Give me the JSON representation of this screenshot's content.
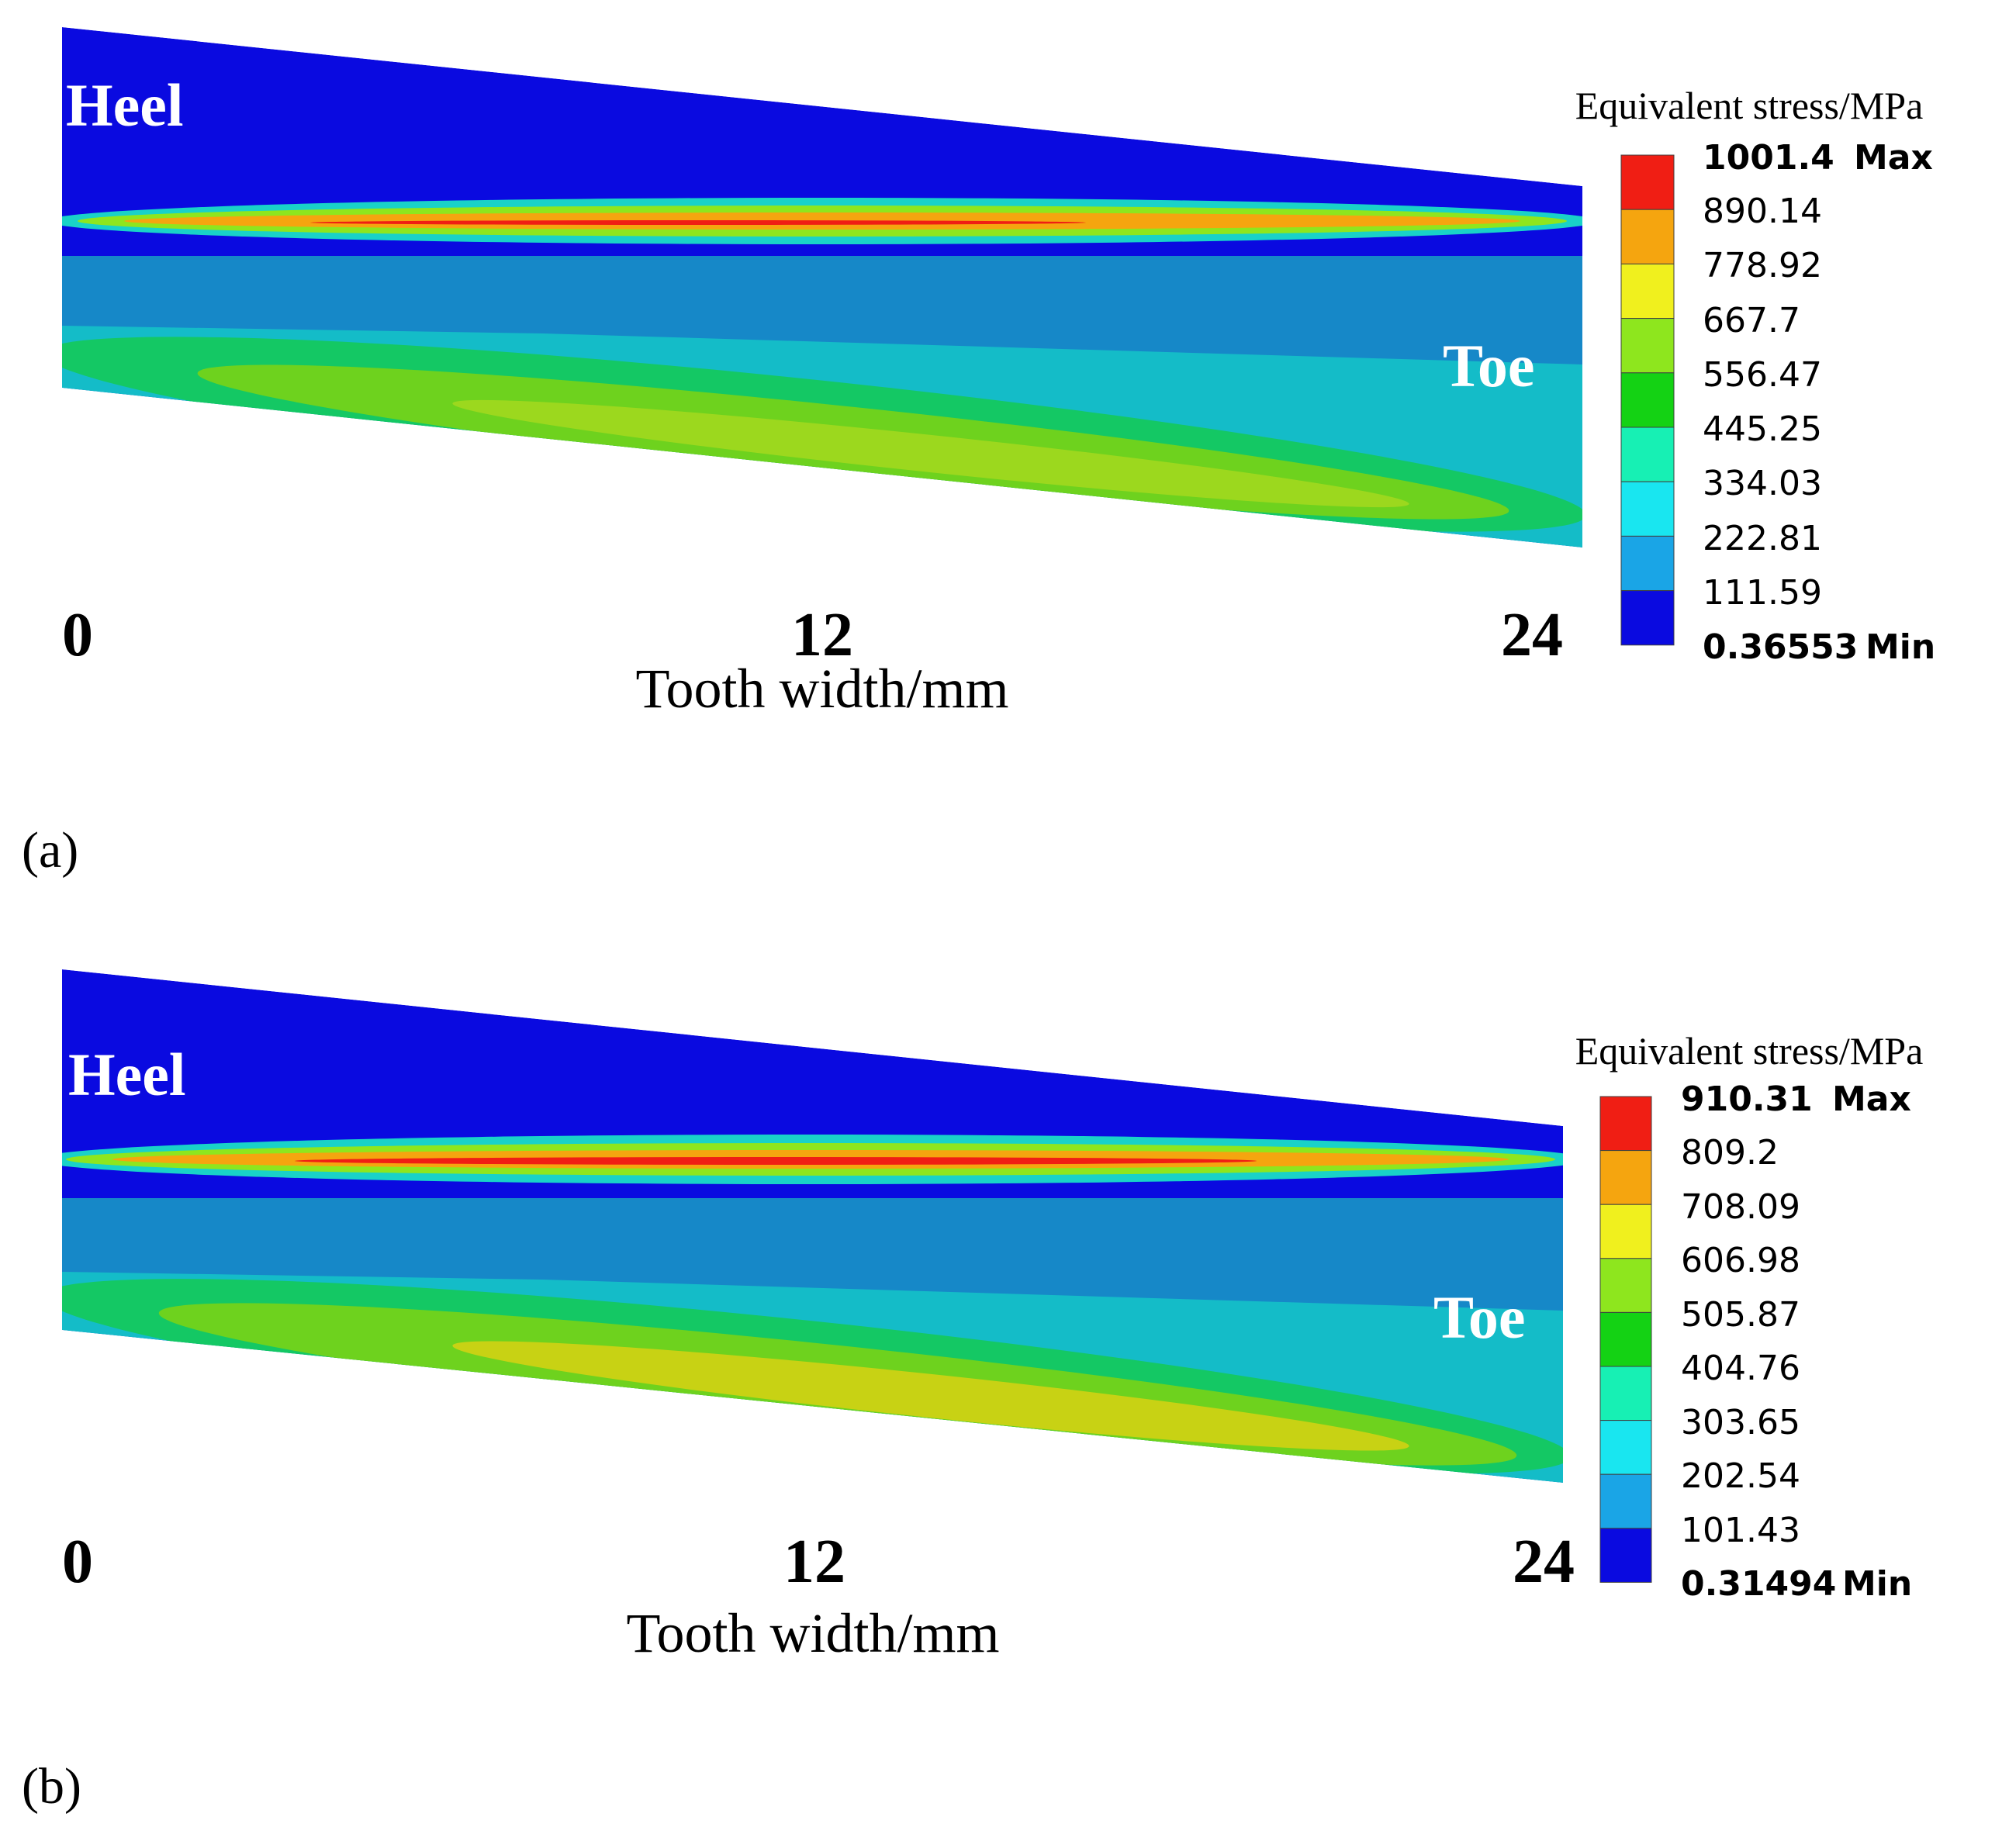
{
  "palette": [
    "#0a0ae0",
    "#1aa5e6",
    "#19e6f0",
    "#17f0b4",
    "#14d214",
    "#8ee61e",
    "#f0f01e",
    "#f5a50f",
    "#f01e14"
  ],
  "panels": [
    {
      "id": "a",
      "panel_label": "(a)",
      "heel_label": "Heel",
      "toe_label": "Toe",
      "x_ticks": [
        "0",
        "12",
        "24"
      ],
      "x_axis_title": "Tooth width/mm",
      "legend": {
        "title": "Equivalent stress/MPa",
        "max_value": "1001.4",
        "max_tag": "Max",
        "values": [
          "890.14",
          "778.92",
          "667.7",
          "556.47",
          "445.25",
          "334.03",
          "222.81",
          "111.59"
        ],
        "min_value": "0.36553",
        "min_tag": "Min"
      }
    },
    {
      "id": "b",
      "panel_label": "(b)",
      "heel_label": "Heel",
      "toe_label": "Toe",
      "x_ticks": [
        "0",
        "12",
        "24"
      ],
      "x_axis_title": "Tooth width/mm",
      "legend": {
        "title": "Equivalent stress/MPa",
        "max_value": "910.31",
        "max_tag": "Max",
        "values": [
          "809.2",
          "708.09",
          "606.98",
          "505.87",
          "404.76",
          "303.65",
          "202.54",
          "101.43"
        ],
        "min_value": "0.31494",
        "min_tag": "Min"
      }
    }
  ]
}
